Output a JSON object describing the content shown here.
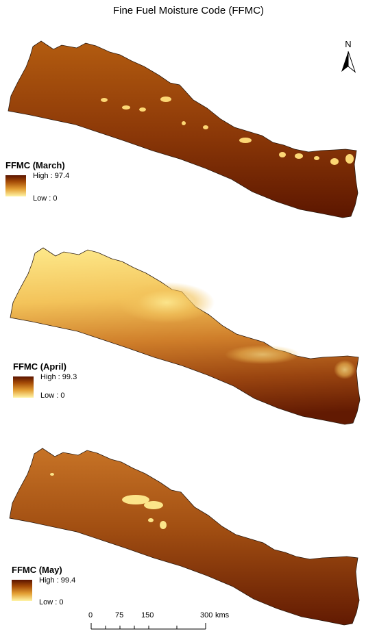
{
  "title": "Fine Fuel Moisture Code (FFMC)",
  "panels": [
    {
      "legend_title": "FFMC (March)",
      "high": "High : 97.4",
      "low": "Low : 0"
    },
    {
      "legend_title": "FFMC (April)",
      "high": "High : 99.3",
      "low": "Low : 0"
    },
    {
      "legend_title": "FFMC (May)",
      "high": "High : 99.4",
      "low": "Low : 0"
    }
  ],
  "north_arrow": {
    "label": "N",
    "icon": "north-arrow-icon"
  },
  "scale_bar": {
    "ticks": [
      "0",
      "75",
      "150",
      "300"
    ],
    "unit": "kms"
  },
  "colors": {
    "high": "#5a1400",
    "mid": "#c26a1a",
    "low": "#fff4a6",
    "outline": "#2a1a10"
  }
}
